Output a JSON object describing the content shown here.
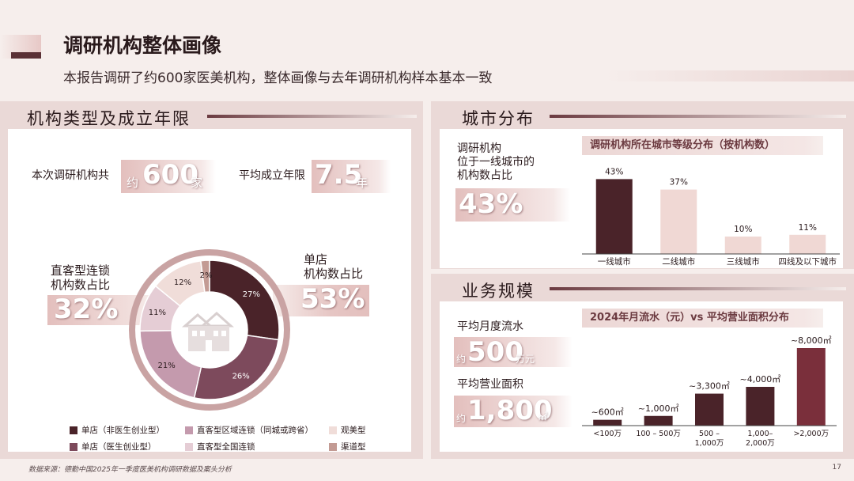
{
  "header": {
    "title": "调研机构整体画像",
    "subtitle": "本报告调研了约600家医美机构，整体画像与去年调研机构样本基本一致"
  },
  "left_panel": {
    "title": "机构类型及成立年限",
    "total_label": "本次调研机构共",
    "total_prefix": "约",
    "total_value": "600",
    "total_unit": "家",
    "avg_age_label": "平均成立年限",
    "avg_age_value": "7.5",
    "avg_age_unit": "年",
    "chain_label_line1": "直客型连锁",
    "chain_label_line2": "机构数占比",
    "chain_value": "32%",
    "single_label_line1": "单店",
    "single_label_line2": "机构数占比",
    "single_value": "53%",
    "legend": [
      {
        "label": "单店（非医生创业型）",
        "color": "#4a2329"
      },
      {
        "label": "单店（医生创业型）",
        "color": "#7d4a5c"
      },
      {
        "label": "直客型区域连锁（同城或跨省）",
        "color": "#c49aad"
      },
      {
        "label": "直客型全国连锁",
        "color": "#e5cdd5"
      },
      {
        "label": "观美型",
        "color": "#f0ddd9"
      },
      {
        "label": "渠道型",
        "color": "#c39b94"
      }
    ]
  },
  "city_panel": {
    "title": "城市分布",
    "label_line1": "调研机构",
    "label_line2": "位于一线城市的",
    "label_line3": "机构数占比",
    "value": "43%",
    "chart_title": "调研机构所在城市等级分布（按机构数）"
  },
  "biz_panel": {
    "title": "业务规模",
    "flow_label": "平均月度流水",
    "flow_prefix": "约",
    "flow_value": "500",
    "flow_unit": "万元",
    "area_label": "平均营业面积",
    "area_prefix": "约",
    "area_value": "1,800",
    "area_unit": "㎡",
    "chart_title": "2024年月流水（元）vs 平均营业面积分布"
  },
  "footer": {
    "source": "数据来源：德勤中国2025年一季度医美机构调研数据及案头分析",
    "page": "17"
  },
  "chart_data": [
    {
      "type": "pie",
      "variant": "donut",
      "categories": [
        "单店（非医生创业型）",
        "单店（医生创业型）",
        "直客型区域连锁（同城或跨省）",
        "直客型全国连锁",
        "观美型",
        "渠道型"
      ],
      "values": [
        27,
        26,
        21,
        11,
        12,
        2
      ],
      "data_labels": [
        "27%",
        "26%",
        "21%",
        "11%",
        "12%",
        "2%"
      ],
      "colors": [
        "#4a2329",
        "#7d4a5c",
        "#c49aad",
        "#e5cdd5",
        "#f0ddd9",
        "#c39b94"
      ]
    },
    {
      "type": "bar",
      "title": "调研机构所在城市等级分布（按机构数）",
      "categories": [
        "一线城市",
        "二线城市",
        "三线城市",
        "四线及以下城市"
      ],
      "values": [
        43,
        37,
        10,
        11
      ],
      "data_labels": [
        "43%",
        "37%",
        "10%",
        "11%"
      ],
      "colors": [
        "#4a2329",
        "#f0d8d4",
        "#f0d8d4",
        "#f0d8d4"
      ],
      "ylim": [
        0,
        45
      ]
    },
    {
      "type": "bar",
      "title": "2024年月流水（元）vs 平均营业面积分布",
      "categories": [
        "<100万",
        "100 – 500万",
        "500 –\n1,000万",
        "1,000–\n2,000万",
        ">2,000万"
      ],
      "values": [
        600,
        1000,
        3300,
        4000,
        8000
      ],
      "data_labels": [
        "~600㎡",
        "~1,000㎡",
        "~3,300㎡",
        "~4,000㎡",
        "~8,000㎡"
      ],
      "colors": [
        "#4a2329",
        "#4a2329",
        "#4a2329",
        "#4a2329",
        "#7a2f3b"
      ],
      "ylim": [
        0,
        8000
      ]
    }
  ]
}
